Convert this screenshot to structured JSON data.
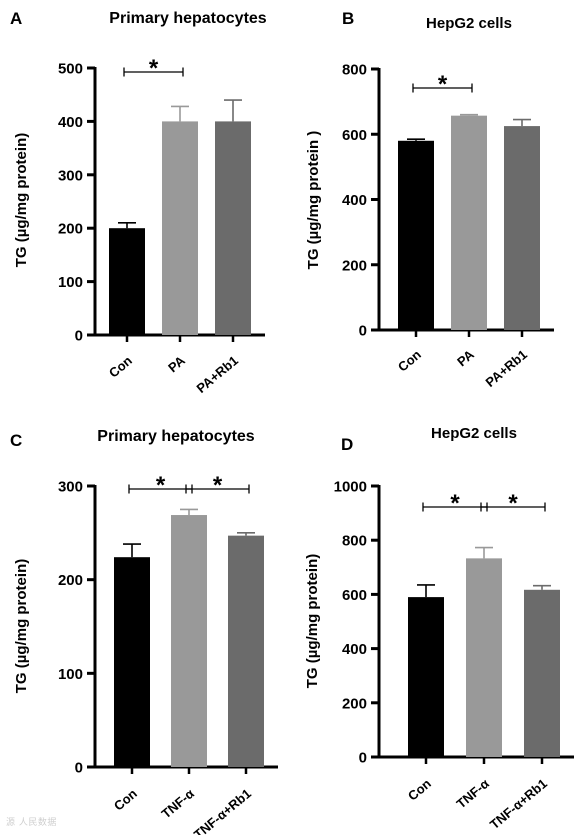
{
  "figure": {
    "watermark": "源 人民数据"
  },
  "chart_data": [
    {
      "panel": "A",
      "type": "bar",
      "title": "Primary hepatocytes",
      "ylabel": "TG (µg/mg protein)",
      "categories": [
        "Con",
        "PA",
        "PA+Rb1"
      ],
      "values": [
        200,
        400,
        400
      ],
      "errors": [
        10,
        28,
        40
      ],
      "colors": [
        "#000000",
        "#999999",
        "#6b6b6b"
      ],
      "ylim": [
        0,
        500
      ],
      "yticks": [
        0,
        100,
        200,
        300,
        400,
        500
      ],
      "significance": [
        {
          "from": 0,
          "to": 1,
          "label": "*"
        }
      ]
    },
    {
      "panel": "B",
      "type": "bar",
      "title": "HepG2 cells",
      "ylabel": "TG (µg/mg protein )",
      "categories": [
        "Con",
        "PA",
        "PA+Rb1"
      ],
      "values": [
        580,
        657,
        625
      ],
      "errors": [
        5,
        3,
        20
      ],
      "colors": [
        "#000000",
        "#999999",
        "#6b6b6b"
      ],
      "ylim": [
        0,
        800
      ],
      "yticks": [
        0,
        200,
        400,
        600,
        800
      ],
      "significance": [
        {
          "from": 0,
          "to": 1,
          "label": "*"
        }
      ]
    },
    {
      "panel": "C",
      "type": "bar",
      "title": "Primary hepatocytes",
      "ylabel": "TG (µg/mg protein)",
      "categories": [
        "Con",
        "TNF-α",
        "TNF-α+Rb1"
      ],
      "values": [
        224,
        269,
        247
      ],
      "errors": [
        14,
        6,
        3
      ],
      "colors": [
        "#000000",
        "#999999",
        "#6b6b6b"
      ],
      "ylim": [
        0,
        300
      ],
      "yticks": [
        0,
        100,
        200,
        300
      ],
      "significance": [
        {
          "from": 0,
          "to": 1,
          "label": "*"
        },
        {
          "from": 1,
          "to": 2,
          "label": "*"
        }
      ]
    },
    {
      "panel": "D",
      "type": "bar",
      "title": "HepG2 cells",
      "ylabel": "TG (µg/mg protein)",
      "categories": [
        "Con",
        "TNF-α",
        "TNF-α+Rb1"
      ],
      "values": [
        590,
        733,
        617
      ],
      "errors": [
        45,
        40,
        15
      ],
      "colors": [
        "#000000",
        "#999999",
        "#6b6b6b"
      ],
      "ylim": [
        0,
        1000
      ],
      "yticks": [
        0,
        200,
        400,
        600,
        800,
        1000
      ],
      "significance": [
        {
          "from": 0,
          "to": 1,
          "label": "*"
        },
        {
          "from": 1,
          "to": 2,
          "label": "*"
        }
      ]
    }
  ]
}
